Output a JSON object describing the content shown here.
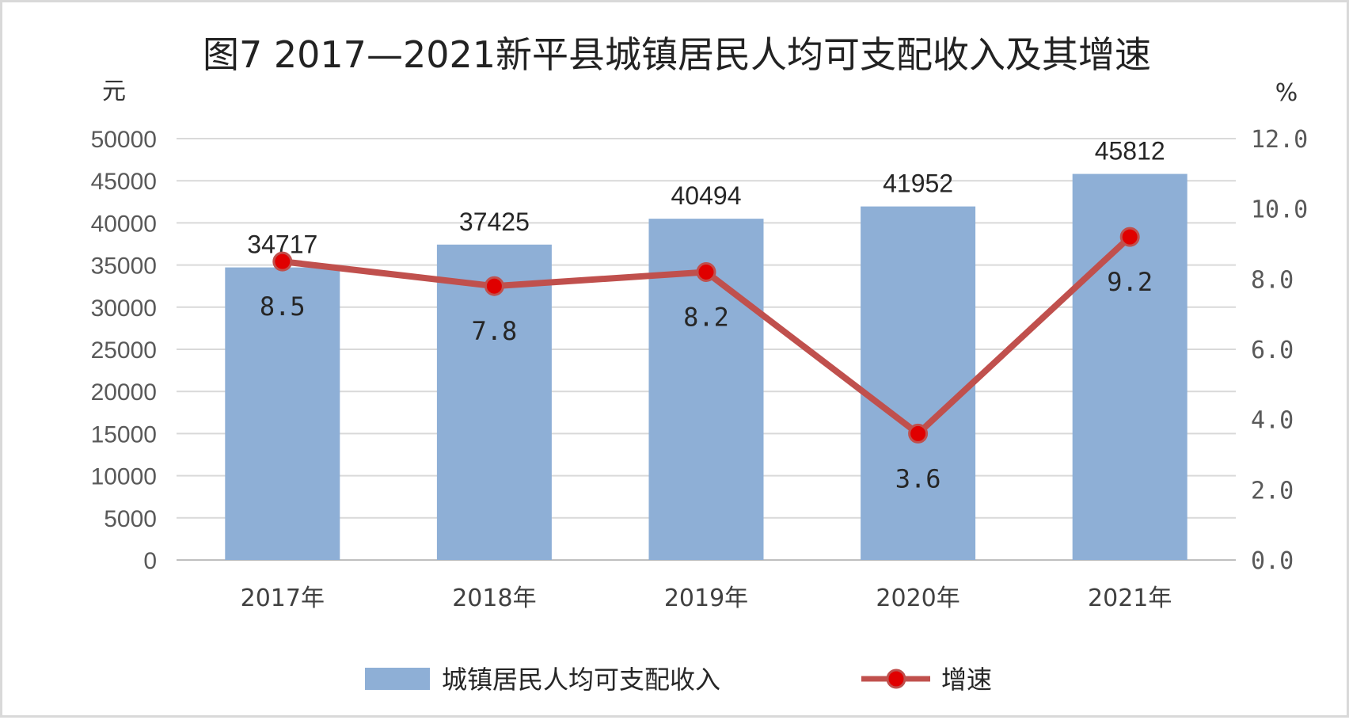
{
  "chart_data": {
    "type": "bar+line",
    "title": "图7 2017—2021新平县城镇居民人均可支配收入及其增速",
    "ylabel_left": "元",
    "ylabel_right": "%",
    "categories": [
      "2017年",
      "2018年",
      "2019年",
      "2020年",
      "2021年"
    ],
    "left_axis": {
      "ylim": [
        0,
        50000
      ],
      "ticks": [
        "0",
        "5000",
        "10000",
        "15000",
        "20000",
        "25000",
        "30000",
        "35000",
        "40000",
        "45000",
        "50000"
      ]
    },
    "right_axis": {
      "ylim": [
        0,
        12
      ],
      "ticks": [
        "0.0",
        "2.0",
        "4.0",
        "6.0",
        "8.0",
        "10.0",
        "12.0"
      ]
    },
    "series": [
      {
        "name": "城镇居民人均可支配收入",
        "type": "bar",
        "axis": "left",
        "color": "#8eafd6",
        "values": [
          34717,
          37425,
          40494,
          41952,
          45812
        ],
        "labels": [
          "34717",
          "37425",
          "40494",
          "41952",
          "45812"
        ]
      },
      {
        "name": "增速",
        "type": "line",
        "axis": "right",
        "color": "#c0504d",
        "marker_color": "#e00000",
        "values": [
          8.5,
          7.8,
          8.2,
          3.6,
          9.2
        ],
        "labels": [
          "8.5",
          "7.8",
          "8.2",
          "3.6",
          "9.2"
        ]
      }
    ],
    "grid": true,
    "legend": "bottom-center"
  }
}
